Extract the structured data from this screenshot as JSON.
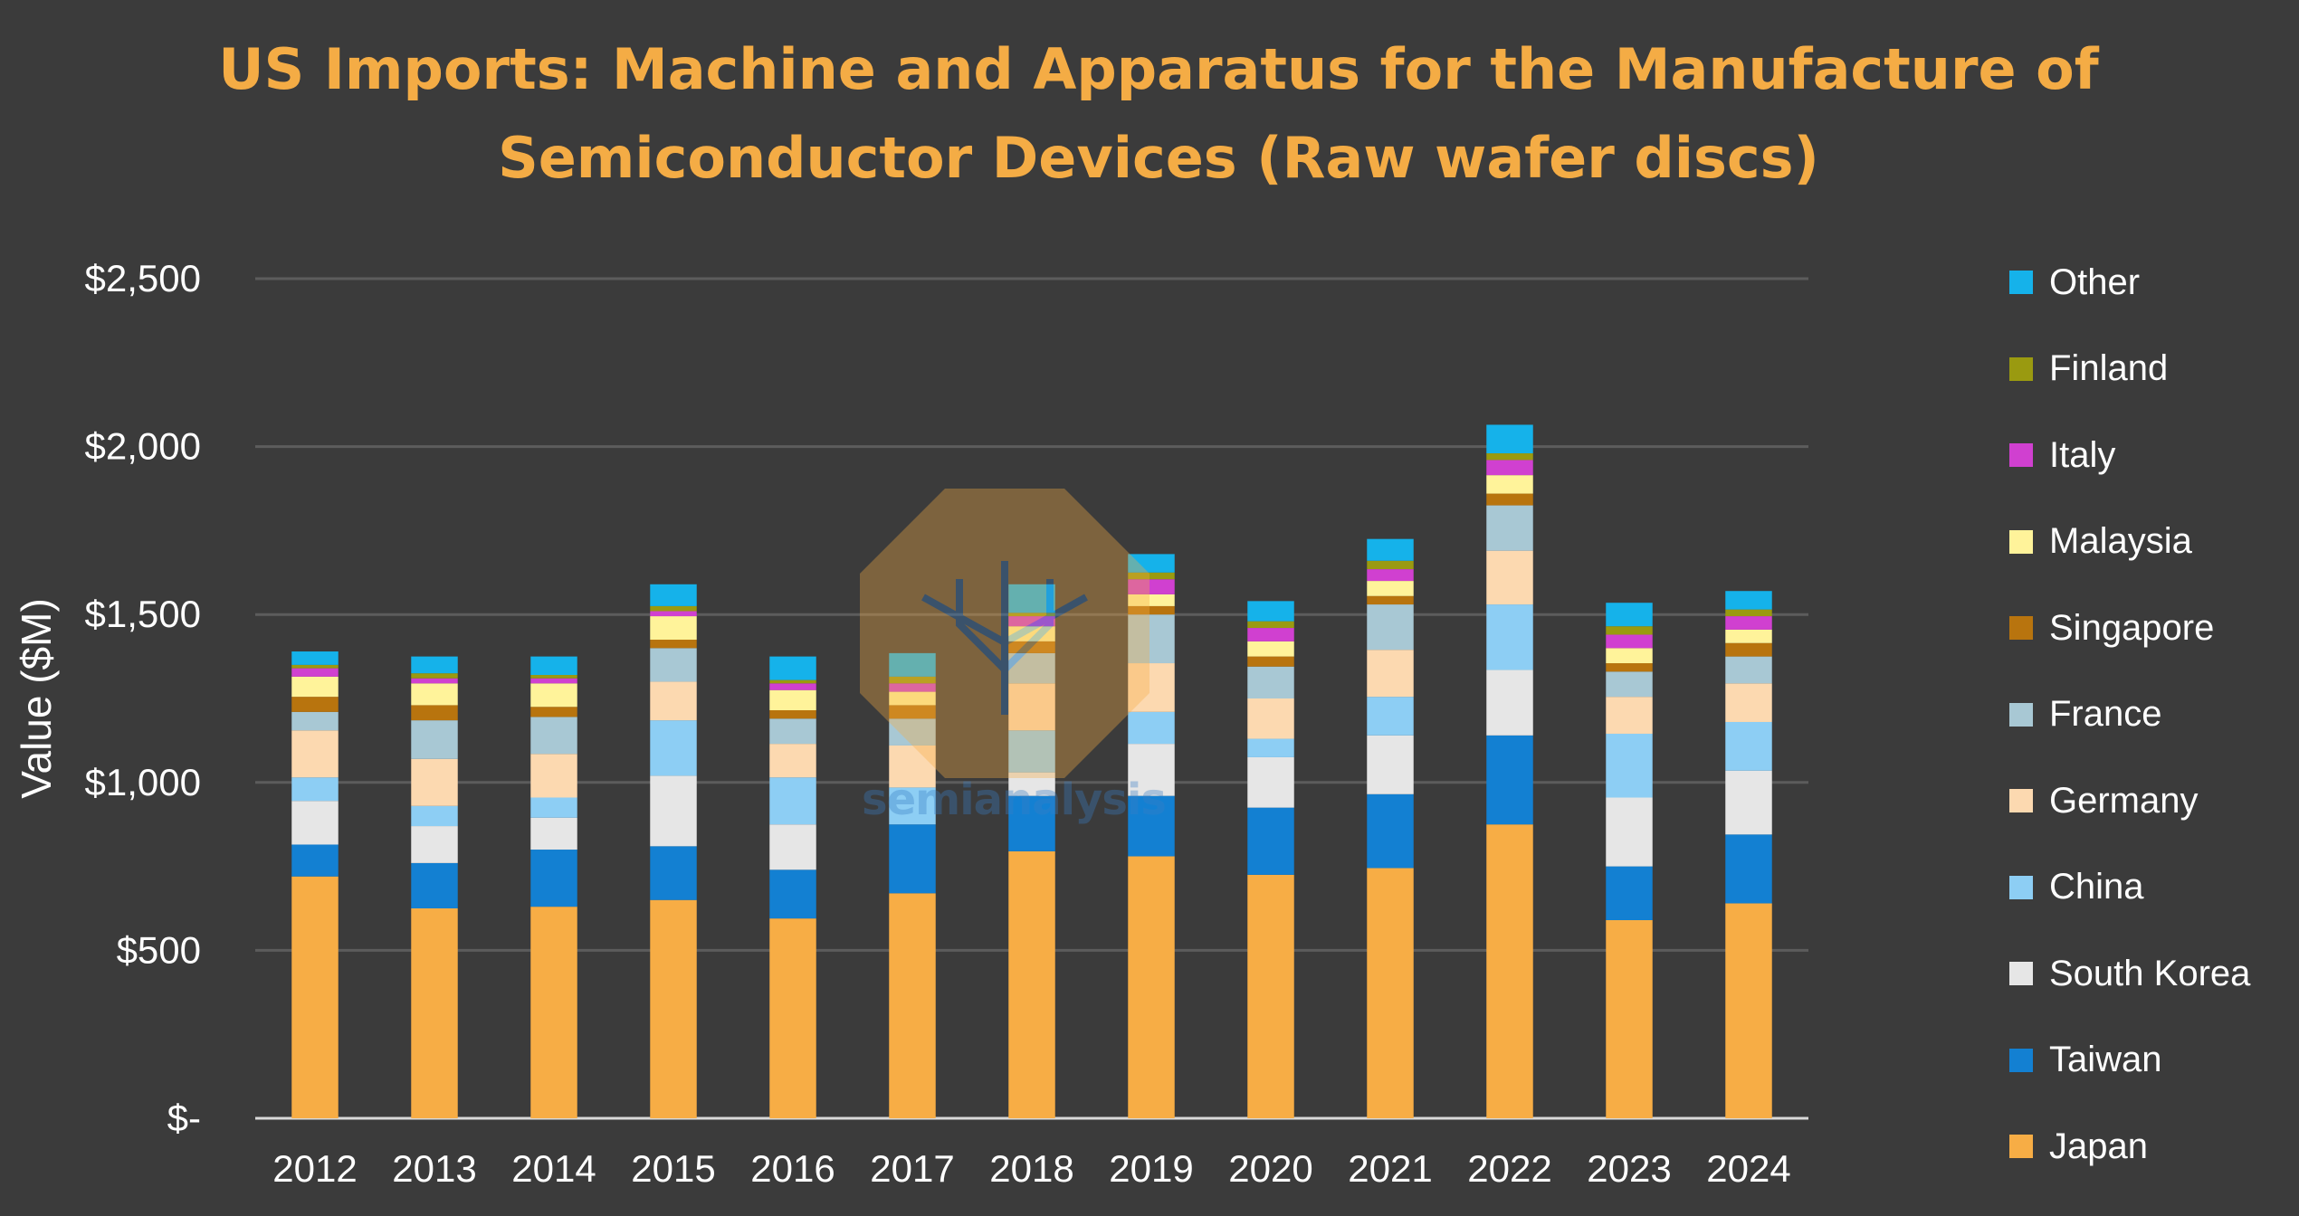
{
  "title_lines": [
    "US Imports: Machine and Apparatus for the Manufacture of",
    "Semiconductor Devices (Raw wafer discs)"
  ],
  "watermark": "semianalysis",
  "chart_data": {
    "type": "bar",
    "stacked": true,
    "title": "US Imports: Machine and Apparatus for the Manufacture of Semiconductor Devices (Raw wafer discs)",
    "ylabel": "Value ($M)",
    "xlabel": "",
    "ylim": [
      0,
      2500
    ],
    "yticks": [
      0,
      500,
      1000,
      1500,
      2000,
      2500
    ],
    "ytick_labels": [
      "$-",
      "$500",
      "$1,000",
      "$1,500",
      "$2,000",
      "$2,500"
    ],
    "grid": true,
    "legend_position": "right",
    "categories": [
      "2012",
      "2013",
      "2014",
      "2015",
      "2016",
      "2017",
      "2018",
      "2019",
      "2020",
      "2021",
      "2022",
      "2023",
      "2024"
    ],
    "series": [
      {
        "name": "Japan",
        "color": "#f7ad45",
        "values": [
          720,
          625,
          630,
          650,
          595,
          670,
          795,
          780,
          725,
          745,
          875,
          590,
          640
        ]
      },
      {
        "name": "Taiwan",
        "color": "#1380d2",
        "values": [
          95,
          135,
          170,
          160,
          145,
          205,
          165,
          180,
          200,
          220,
          265,
          160,
          205
        ]
      },
      {
        "name": "South Korea",
        "color": "#e6e6e6",
        "values": [
          130,
          110,
          95,
          210,
          135,
          0,
          70,
          155,
          150,
          175,
          195,
          205,
          190
        ]
      },
      {
        "name": "China",
        "color": "#8dcef4",
        "values": [
          70,
          60,
          60,
          165,
          140,
          110,
          125,
          95,
          55,
          115,
          195,
          190,
          145
        ]
      },
      {
        "name": "Germany",
        "color": "#fcd9b0",
        "values": [
          140,
          140,
          130,
          115,
          100,
          125,
          140,
          145,
          120,
          140,
          160,
          110,
          115
        ]
      },
      {
        "name": "France",
        "color": "#a8c8d4",
        "values": [
          55,
          115,
          110,
          100,
          75,
          80,
          90,
          145,
          95,
          135,
          135,
          75,
          80
        ]
      },
      {
        "name": "Singapore",
        "color": "#b8740e",
        "values": [
          45,
          45,
          30,
          25,
          25,
          40,
          35,
          25,
          30,
          25,
          35,
          25,
          40
        ]
      },
      {
        "name": "Malaysia",
        "color": "#fff39a",
        "values": [
          60,
          65,
          70,
          70,
          60,
          40,
          45,
          35,
          45,
          45,
          55,
          45,
          40
        ]
      },
      {
        "name": "Italy",
        "color": "#d040d0",
        "values": [
          25,
          15,
          15,
          15,
          20,
          25,
          30,
          45,
          40,
          35,
          45,
          40,
          40
        ]
      },
      {
        "name": "Finland",
        "color": "#9a9a10",
        "values": [
          10,
          15,
          10,
          15,
          10,
          20,
          10,
          20,
          20,
          25,
          20,
          25,
          20
        ]
      },
      {
        "name": "Other",
        "color": "#15b2ea",
        "values": [
          40,
          50,
          55,
          65,
          70,
          70,
          85,
          55,
          60,
          65,
          85,
          70,
          55
        ]
      }
    ]
  }
}
